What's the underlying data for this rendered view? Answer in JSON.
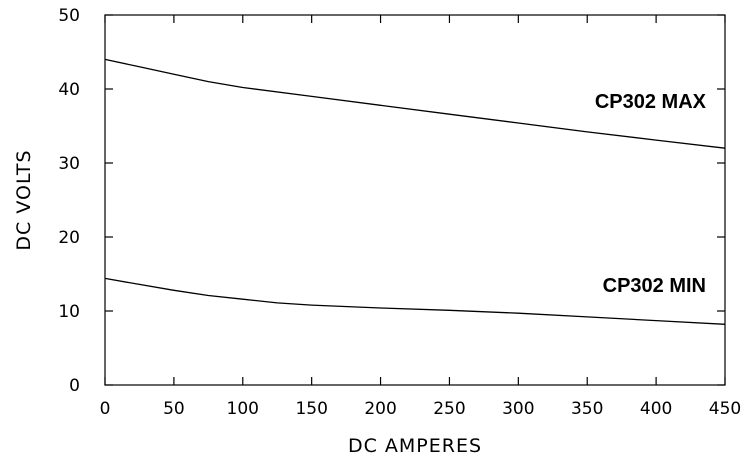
{
  "chart_data": {
    "type": "line",
    "xlabel": "DC AMPERES",
    "ylabel": "DC VOLTS",
    "xlim": [
      0,
      450
    ],
    "ylim": [
      0,
      50
    ],
    "xticks": [
      0,
      50,
      100,
      150,
      200,
      250,
      300,
      350,
      400,
      450
    ],
    "yticks": [
      0,
      10,
      20,
      30,
      40,
      50
    ],
    "grid": false,
    "series": [
      {
        "name": "CP302 MAX",
        "x": [
          0,
          25,
          50,
          75,
          100,
          150,
          200,
          250,
          300,
          350,
          400,
          450
        ],
        "y": [
          44.0,
          43.0,
          42.0,
          41.0,
          40.2,
          39.0,
          37.8,
          36.6,
          35.4,
          34.2,
          33.1,
          32.0
        ]
      },
      {
        "name": "CP302 MIN",
        "x": [
          0,
          25,
          50,
          75,
          100,
          125,
          150,
          200,
          250,
          300,
          350,
          400,
          450
        ],
        "y": [
          14.4,
          13.6,
          12.8,
          12.1,
          11.6,
          11.1,
          10.8,
          10.4,
          10.1,
          9.7,
          9.2,
          8.7,
          8.2
        ]
      }
    ]
  }
}
